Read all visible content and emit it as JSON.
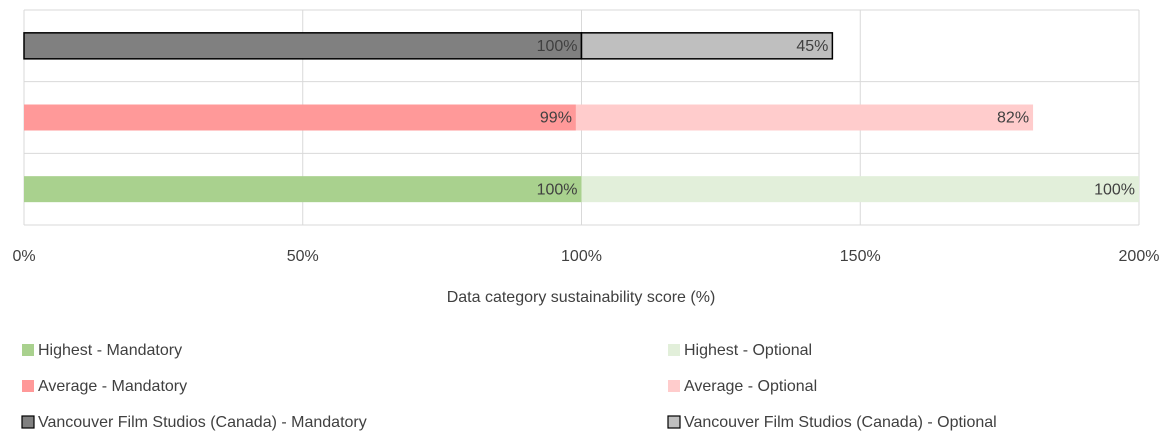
{
  "chart_data": {
    "type": "stacked-barh",
    "categories": [
      null,
      null,
      null
    ],
    "series": [
      {
        "name": "Highest - Mandatory",
        "color": "#a9d18e",
        "values": [
          null,
          null,
          100
        ],
        "value_labels": [
          null,
          null,
          "100%"
        ]
      },
      {
        "name": "Highest - Optional",
        "color": "#e2efda",
        "values": [
          null,
          null,
          100
        ],
        "value_labels": [
          null,
          null,
          "100%"
        ]
      },
      {
        "name": "Average - Mandatory",
        "color": "#ff9999",
        "values": [
          null,
          99,
          null
        ],
        "value_labels": [
          null,
          "99%",
          null
        ]
      },
      {
        "name": "Average - Optional",
        "color": "#ffcccc",
        "values": [
          null,
          82,
          null
        ],
        "value_labels": [
          null,
          "82%",
          null
        ]
      },
      {
        "name": "Vancouver Film Studios (Canada) - Mandatory",
        "color": "#808080",
        "edgecolor": "#000000",
        "values": [
          100,
          null,
          null
        ],
        "value_labels": [
          "100%",
          null,
          null
        ]
      },
      {
        "name": "Vancouver Film Studios (Canada) - Optional",
        "color": "#bfbfbf",
        "edgecolor": "#000000",
        "values": [
          45,
          null,
          null
        ],
        "value_labels": [
          "45%",
          null,
          null
        ]
      }
    ],
    "xlabel": "Data category sustainability score (%)",
    "xlim": [
      0,
      200
    ],
    "xticks": [
      {
        "value": 0,
        "label": "0%"
      },
      {
        "value": 50,
        "label": "50%"
      },
      {
        "value": 100,
        "label": "100%"
      },
      {
        "value": 150,
        "label": "150%"
      },
      {
        "value": 200,
        "label": "200%"
      }
    ],
    "grid": true
  }
}
